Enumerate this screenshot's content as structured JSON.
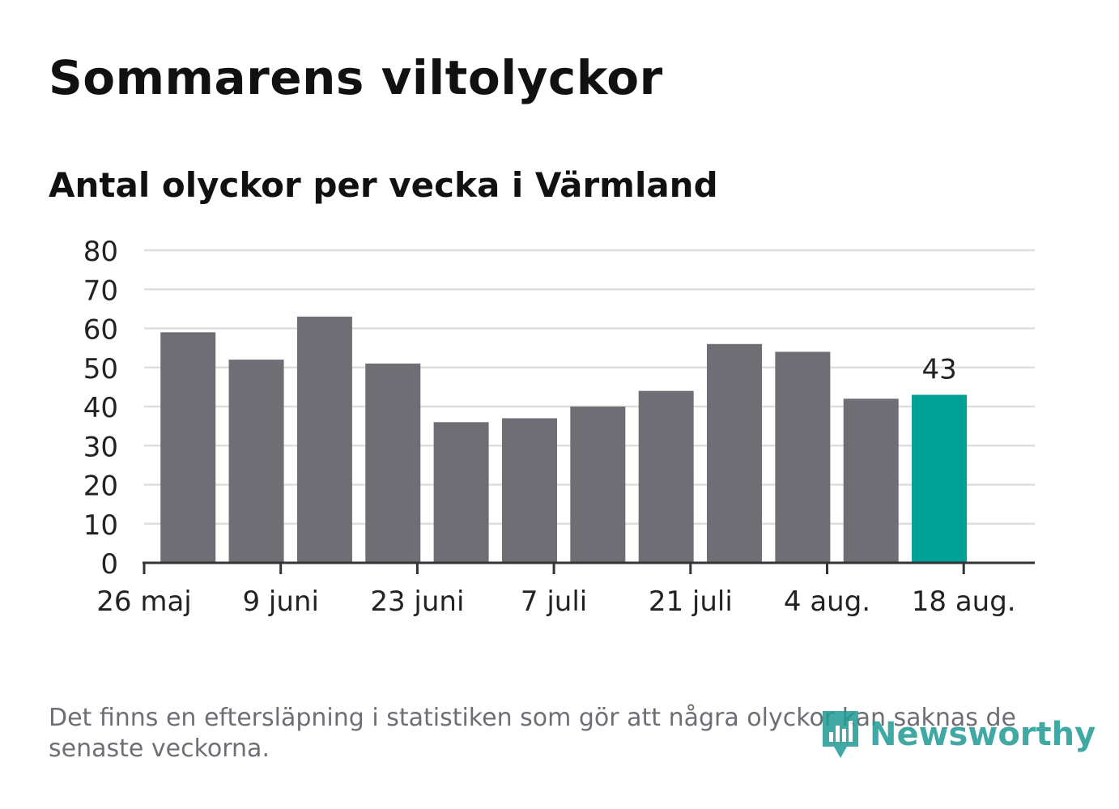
{
  "title": "Sommarens viltolyckor",
  "subtitle": "Antal olyckor per vecka i Värmland",
  "footnote": "Det finns en eftersläpning i statistiken som gör att några olyckor kan saknas de senaste veckorna.",
  "logo": {
    "text": "Newsworthy",
    "icon": "bar-chart-bubble-icon"
  },
  "colors": {
    "bar": "#6f6e75",
    "highlight": "#00a297",
    "grid": "#dedede",
    "axis": "#333333"
  },
  "chart_data": {
    "type": "bar",
    "title": "Sommarens viltolyckor",
    "subtitle": "Antal olyckor per vecka i Värmland",
    "xlabel": "",
    "ylabel": "",
    "ylim": [
      0,
      80
    ],
    "yticks": [
      0,
      10,
      20,
      30,
      40,
      50,
      60,
      70,
      80
    ],
    "categories": [
      "2019-05-27",
      "2019-06-03",
      "2019-06-10",
      "2019-06-17",
      "2019-06-24",
      "2019-07-01",
      "2019-07-08",
      "2019-07-15",
      "2019-07-22",
      "2019-07-29",
      "2019-08-05",
      "2019-08-12"
    ],
    "values": [
      59,
      52,
      63,
      51,
      36,
      37,
      40,
      44,
      56,
      54,
      42,
      43
    ],
    "xticks": [
      {
        "date": "2019-05-26",
        "label": "26 maj"
      },
      {
        "date": "2019-06-09",
        "label": "9 juni"
      },
      {
        "date": "2019-06-23",
        "label": "23 juni"
      },
      {
        "date": "2019-07-07",
        "label": "7 juli"
      },
      {
        "date": "2019-07-21",
        "label": "21 juli"
      },
      {
        "date": "2019-08-04",
        "label": "4 aug."
      },
      {
        "date": "2019-08-18",
        "label": "18 aug."
      }
    ],
    "highlight_index": 11,
    "data_labels": [
      {
        "index": 11,
        "text": "43"
      }
    ],
    "grid": true,
    "legend": "none"
  }
}
